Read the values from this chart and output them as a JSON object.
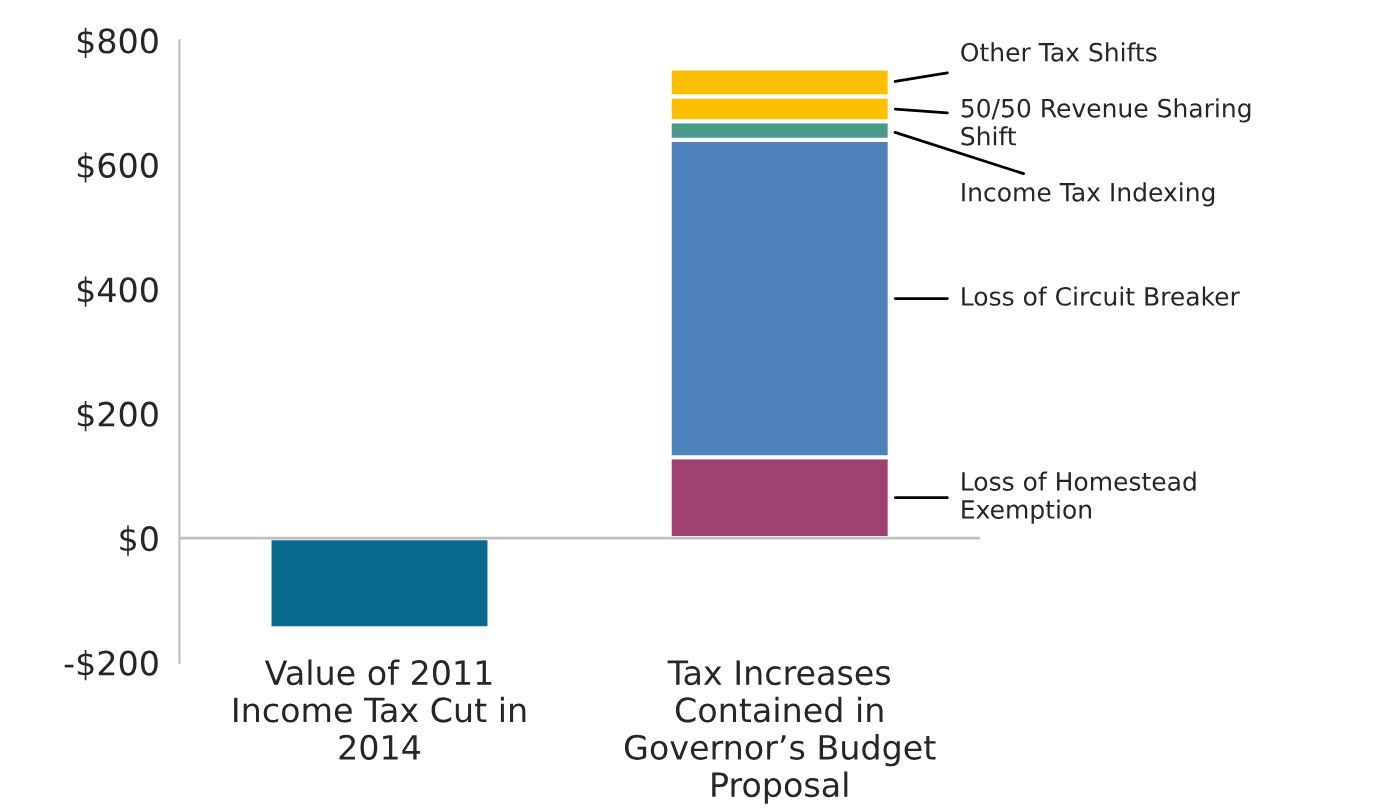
{
  "chart_data": {
    "type": "bar",
    "stacked": true,
    "categories": [
      "Value of 2011\nIncome Tax Cut in\n2014",
      "Tax Increases\nContained in\nGovernor’s Budget\nProposal"
    ],
    "series": [
      {
        "color": "#086a8c",
        "values": [
          -145,
          null
        ]
      },
      {
        "name": "Loss of Homestead\nExemption",
        "color": "#a0426f",
        "values": [
          null,
          130
        ]
      },
      {
        "name": "Loss of Circuit Breaker",
        "color": "#4f81bd",
        "values": [
          null,
          510
        ]
      },
      {
        "name": "Income Tax Indexing",
        "color": "#4a9a8c",
        "values": [
          null,
          30
        ]
      },
      {
        "name": "50/50 Revenue Sharing\nShift",
        "color": "#fcc000",
        "values": [
          null,
          40
        ]
      },
      {
        "name": "Other Tax Shifts",
        "color": "#fcc000",
        "values": [
          null,
          45
        ]
      }
    ],
    "ylim": [
      -200,
      800
    ],
    "yticks": [
      {
        "value": -200,
        "label": "-$200"
      },
      {
        "value": 0,
        "label": "$0"
      },
      {
        "value": 200,
        "label": "$200"
      },
      {
        "value": 400,
        "label": "$400"
      },
      {
        "value": 600,
        "label": "$600"
      },
      {
        "value": 800,
        "label": "$800"
      }
    ],
    "legend": false
  }
}
